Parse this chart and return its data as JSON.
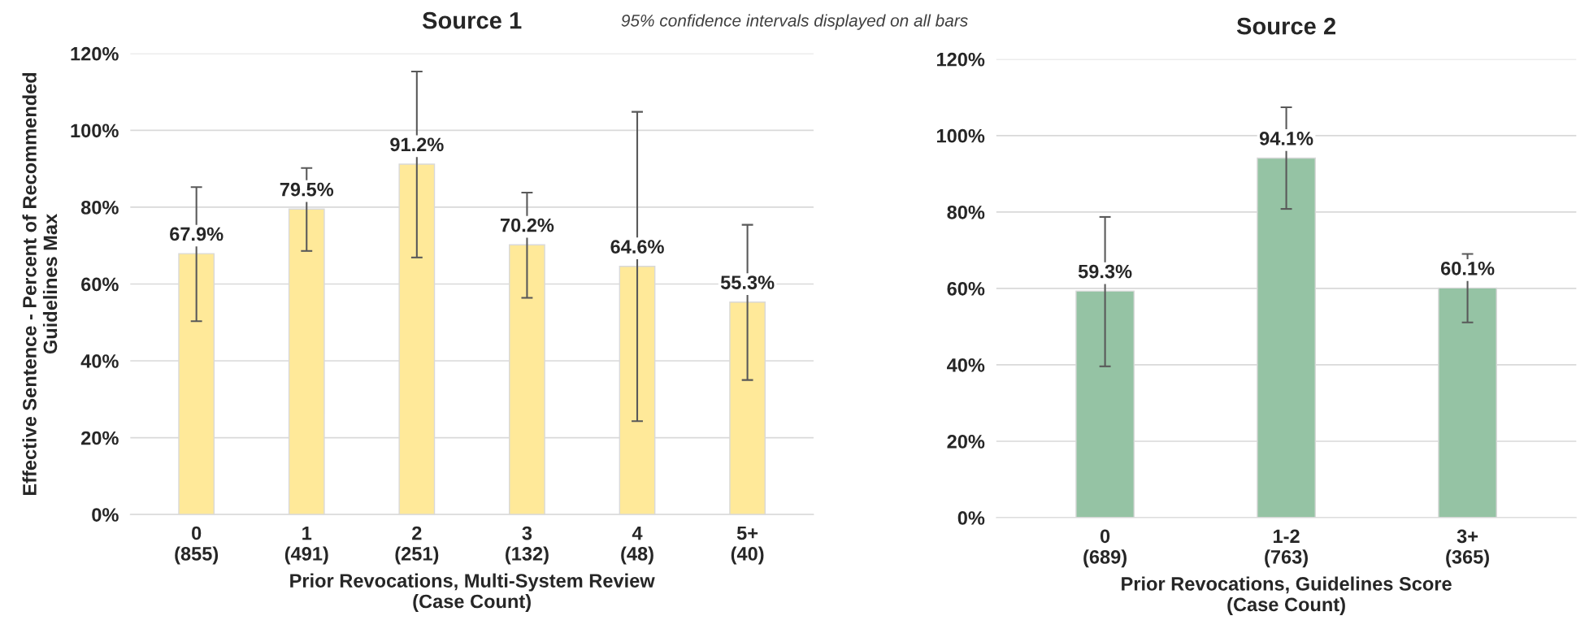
{
  "chart_data": [
    {
      "type": "bar",
      "title": "Source 1",
      "xlabel": "Prior Revocations, Multi-System Review\n(Case Count)",
      "ylabel": "Effective Sentence - Percent of Recommended\nGuidelines Max",
      "annotations": [
        "95% confidence intervals displayed on all bars"
      ],
      "categories": [
        "0\n(855)",
        "1\n(491)",
        "2\n(251)",
        "3\n(132)",
        "4\n(48)",
        "5+\n(40)"
      ],
      "values": [
        67.9,
        79.5,
        91.2,
        70.2,
        64.6,
        55.3
      ],
      "value_labels": [
        "67.9%",
        "79.5%",
        "91.2%",
        "70.2%",
        "64.6%",
        "55.3%"
      ],
      "errors": [
        [
          50.3,
          85.2
        ],
        [
          68.6,
          90.2
        ],
        [
          66.9,
          115.3
        ],
        [
          56.4,
          83.8
        ],
        [
          24.3,
          104.8
        ],
        [
          35.0,
          75.4
        ]
      ],
      "color": "#ffe999",
      "ylim": [
        0,
        120
      ],
      "yticks": [
        {
          "value": 0,
          "label": "0%"
        },
        {
          "value": 20,
          "label": "20%"
        },
        {
          "value": 40,
          "label": "40%"
        },
        {
          "value": 60,
          "label": "60%"
        },
        {
          "value": 80,
          "label": "80%"
        },
        {
          "value": 100,
          "label": "100%"
        },
        {
          "value": 120,
          "label": "120%"
        }
      ],
      "grid": "y"
    },
    {
      "type": "bar",
      "title": "Source 2",
      "xlabel": "Prior Revocations, Guidelines Score\n(Case Count)",
      "categories": [
        "0\n(689)",
        "1-2\n(763)",
        "3+\n(365)"
      ],
      "values": [
        59.3,
        94.1,
        60.1
      ],
      "value_labels": [
        "59.3%",
        "94.1%",
        "60.1%"
      ],
      "errors": [
        [
          39.6,
          78.7
        ],
        [
          80.8,
          107.4
        ],
        [
          51.1,
          69.0
        ]
      ],
      "color": "#95c3a4",
      "ylim": [
        0,
        120
      ],
      "yticks": [
        {
          "value": 0,
          "label": "0%"
        },
        {
          "value": 20,
          "label": "20%"
        },
        {
          "value": 40,
          "label": "40%"
        },
        {
          "value": 60,
          "label": "60%"
        },
        {
          "value": 80,
          "label": "80%"
        },
        {
          "value": 100,
          "label": "100%"
        },
        {
          "value": 120,
          "label": "120%"
        }
      ],
      "grid": "y"
    }
  ]
}
